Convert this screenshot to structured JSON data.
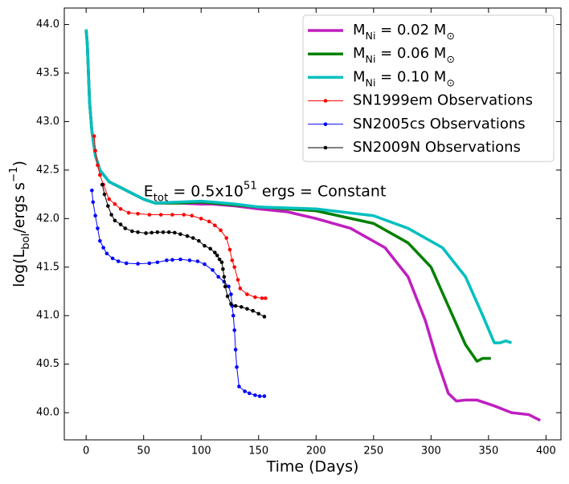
{
  "chart_data": {
    "type": "line",
    "xlabel": "Time (Days)",
    "ylabel": [
      "log(L",
      {
        "sub": "bol"
      },
      "/ergs s",
      {
        "sup": "−1"
      },
      ")"
    ],
    "annotation": {
      "x": 50,
      "y": 42.28,
      "text": [
        "E",
        {
          "sub": "tot"
        },
        " = 0.5x10",
        {
          "sup": "51"
        },
        " ergs = Constant"
      ]
    },
    "xlim": [
      -19,
      413
    ],
    "ylim": [
      39.72,
      44.17
    ],
    "xticks": [
      0,
      50,
      100,
      150,
      200,
      250,
      300,
      350,
      400
    ],
    "yticks": [
      {
        "value": 40,
        "label": "40.0"
      },
      {
        "value": 40.5,
        "label": "40.5"
      },
      {
        "value": 41,
        "label": "41.0"
      },
      {
        "value": 41.5,
        "label": "41.5"
      },
      {
        "value": 42,
        "label": "42.0"
      },
      {
        "value": 42.5,
        "label": "42.5"
      },
      {
        "value": 43,
        "label": "43.0"
      },
      {
        "value": 43.5,
        "label": "43.5"
      },
      {
        "value": 44,
        "label": "44.0"
      }
    ],
    "legend": "upper right",
    "series": [
      {
        "name": [
          "M",
          {
            "sub": "Ni"
          },
          " = 0.02 M",
          {
            "sub": "⊙"
          }
        ],
        "color": "#bf1fbf",
        "width": 3.5,
        "marker": false,
        "x": [
          0,
          1,
          2,
          3,
          5,
          8,
          12,
          20,
          30,
          40,
          50,
          60,
          80,
          100,
          110,
          130,
          150,
          175,
          200,
          230,
          260,
          280,
          295,
          305,
          315,
          322,
          330,
          340,
          355,
          370,
          385,
          395
        ],
        "values": [
          43.95,
          43.8,
          43.5,
          43.2,
          42.9,
          42.65,
          42.5,
          42.38,
          42.32,
          42.26,
          42.2,
          42.16,
          42.16,
          42.15,
          42.15,
          42.13,
          42.1,
          42.07,
          42.0,
          41.9,
          41.7,
          41.4,
          40.95,
          40.55,
          40.2,
          40.12,
          40.13,
          40.13,
          40.07,
          40.0,
          39.98,
          39.92
        ]
      },
      {
        "name": [
          "M",
          {
            "sub": "Ni"
          },
          " = 0.06 M",
          {
            "sub": "⊙"
          }
        ],
        "color": "#008000",
        "width": 3.5,
        "marker": false,
        "x": [
          0,
          1,
          2,
          3,
          5,
          8,
          12,
          20,
          30,
          40,
          50,
          60,
          80,
          100,
          110,
          130,
          150,
          200,
          250,
          280,
          300,
          315,
          330,
          340,
          345,
          352
        ],
        "values": [
          43.95,
          43.8,
          43.5,
          43.2,
          42.9,
          42.65,
          42.5,
          42.38,
          42.32,
          42.26,
          42.2,
          42.16,
          42.16,
          42.17,
          42.16,
          42.14,
          42.12,
          42.08,
          41.95,
          41.75,
          41.5,
          41.1,
          40.7,
          40.53,
          40.56,
          40.56
        ]
      },
      {
        "name": [
          "M",
          {
            "sub": "Ni"
          },
          " = 0.10 M",
          {
            "sub": "⊙"
          }
        ],
        "color": "#00bfbf",
        "width": 3.5,
        "marker": false,
        "x": [
          0,
          1,
          2,
          3,
          5,
          8,
          12,
          20,
          30,
          40,
          50,
          60,
          80,
          100,
          110,
          130,
          150,
          200,
          250,
          280,
          310,
          330,
          345,
          355,
          360,
          365,
          370
        ],
        "values": [
          43.95,
          43.8,
          43.5,
          43.2,
          42.9,
          42.65,
          42.5,
          42.38,
          42.32,
          42.26,
          42.2,
          42.16,
          42.17,
          42.18,
          42.17,
          42.15,
          42.12,
          42.1,
          42.03,
          41.9,
          41.7,
          41.4,
          41.0,
          40.72,
          40.72,
          40.74,
          40.72
        ]
      },
      {
        "name": [
          "SN1999em Observations"
        ],
        "color": "#ff0000",
        "width": 1,
        "marker": true,
        "x": [
          7,
          8,
          10,
          12,
          15,
          20,
          25,
          30,
          37,
          45,
          55,
          65,
          75,
          85,
          92,
          100,
          107,
          112,
          117,
          122,
          125,
          127,
          129,
          132,
          134,
          140,
          147,
          153,
          156
        ],
        "values": [
          42.85,
          42.7,
          42.55,
          42.45,
          42.35,
          42.2,
          42.15,
          42.1,
          42.06,
          42.05,
          42.04,
          42.04,
          42.04,
          42.04,
          42.03,
          42.0,
          41.97,
          41.93,
          41.88,
          41.8,
          41.68,
          41.57,
          41.5,
          41.37,
          41.28,
          41.22,
          41.19,
          41.18,
          41.18
        ]
      },
      {
        "name": [
          "SN2005cs Observations"
        ],
        "color": "#0000ff",
        "width": 1,
        "marker": true,
        "x": [
          5,
          6,
          8,
          10,
          12,
          15,
          18,
          23,
          28,
          35,
          45,
          55,
          62,
          70,
          75,
          82,
          90,
          97,
          103,
          110,
          115,
          120,
          124,
          126,
          127,
          128,
          129,
          130,
          131,
          133,
          138,
          142,
          147,
          151,
          155
        ],
        "values": [
          42.29,
          42.17,
          42.03,
          41.9,
          41.77,
          41.7,
          41.64,
          41.59,
          41.56,
          41.54,
          41.535,
          41.54,
          41.55,
          41.57,
          41.575,
          41.58,
          41.57,
          41.56,
          41.53,
          41.47,
          41.4,
          41.35,
          41.3,
          41.22,
          41.1,
          41.0,
          40.85,
          40.65,
          40.47,
          40.27,
          40.22,
          40.2,
          40.18,
          40.17,
          40.17
        ]
      },
      {
        "name": [
          "SN2009N Observations"
        ],
        "color": "#000000",
        "width": 1,
        "marker": true,
        "x": [
          14,
          16,
          19,
          22,
          25,
          30,
          34,
          40,
          45,
          52,
          57,
          62,
          67,
          72,
          77,
          82,
          88,
          93,
          98,
          103,
          108,
          112,
          114,
          116,
          118,
          119,
          120,
          121,
          123,
          126,
          130,
          135,
          140,
          145,
          150,
          155
        ],
        "values": [
          42.35,
          42.25,
          42.13,
          42.04,
          41.98,
          41.94,
          41.9,
          41.87,
          41.86,
          41.85,
          41.855,
          41.86,
          41.86,
          41.86,
          41.855,
          41.84,
          41.82,
          41.8,
          41.77,
          41.72,
          41.69,
          41.65,
          41.62,
          41.58,
          41.55,
          41.48,
          41.4,
          41.3,
          41.2,
          41.12,
          41.1,
          41.09,
          41.07,
          41.05,
          41.02,
          40.99
        ]
      }
    ]
  }
}
